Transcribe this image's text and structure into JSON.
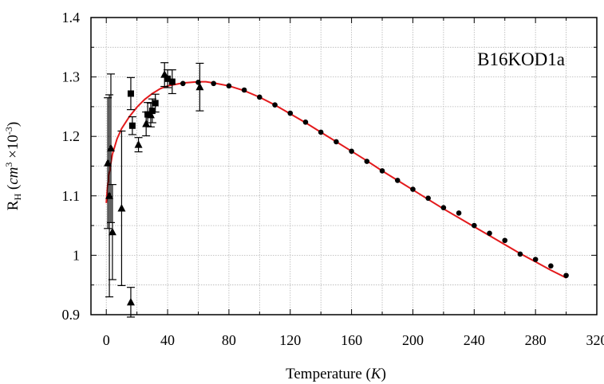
{
  "chart_data": {
    "type": "scatter",
    "annotation": "B16KOD1a",
    "xlabel": {
      "text": "Temperature (",
      "italic": "K",
      "suffix": ")"
    },
    "ylabel": {
      "main": "R",
      "sub": "H",
      "unit_open": " (",
      "unit_italic": "cm",
      "unit_sup": "3",
      "unit_mid": " ×10",
      "unit_sup2": "-3",
      "unit_close": ")"
    },
    "xlim": [
      -10,
      320
    ],
    "ylim": [
      0.9,
      1.4
    ],
    "xticks": [
      0,
      40,
      80,
      120,
      160,
      200,
      240,
      280,
      320
    ],
    "yticks": [
      0.9,
      1.0,
      1.1,
      1.2,
      1.3,
      1.4
    ],
    "ytick_labels": [
      "0.9",
      "1",
      "1.1",
      "1.2",
      "1.3",
      "1.4"
    ],
    "grid": true,
    "colors": {
      "fit": "#e31a1c",
      "markers": "#000000",
      "grid": "#b4b4b4"
    },
    "series": [
      {
        "marker": "circle",
        "points": [
          {
            "x": 50,
            "y": 1.289
          },
          {
            "x": 60,
            "y": 1.291
          },
          {
            "x": 70,
            "y": 1.289
          },
          {
            "x": 80,
            "y": 1.285
          },
          {
            "x": 90,
            "y": 1.278
          },
          {
            "x": 100,
            "y": 1.266
          },
          {
            "x": 110,
            "y": 1.253
          },
          {
            "x": 120,
            "y": 1.239
          },
          {
            "x": 130,
            "y": 1.224
          },
          {
            "x": 140,
            "y": 1.207
          },
          {
            "x": 150,
            "y": 1.191
          },
          {
            "x": 160,
            "y": 1.175
          },
          {
            "x": 170,
            "y": 1.158
          },
          {
            "x": 180,
            "y": 1.142
          },
          {
            "x": 190,
            "y": 1.126
          },
          {
            "x": 200,
            "y": 1.111
          },
          {
            "x": 210,
            "y": 1.096
          },
          {
            "x": 220,
            "y": 1.08
          },
          {
            "x": 230,
            "y": 1.071
          },
          {
            "x": 240,
            "y": 1.05
          },
          {
            "x": 250,
            "y": 1.037
          },
          {
            "x": 260,
            "y": 1.025
          },
          {
            "x": 270,
            "y": 1.002
          },
          {
            "x": 280,
            "y": 0.993
          },
          {
            "x": 290,
            "y": 0.982
          },
          {
            "x": 300,
            "y": 0.966
          }
        ]
      },
      {
        "marker": "square",
        "points": [
          {
            "x": 16,
            "y": 1.272,
            "err": 0.027
          },
          {
            "x": 17,
            "y": 1.218,
            "err": 0.015
          },
          {
            "x": 27,
            "y": 1.237,
            "err": 0.02
          },
          {
            "x": 30,
            "y": 1.243,
            "err": 0.02
          },
          {
            "x": 32,
            "y": 1.256,
            "err": 0.015
          },
          {
            "x": 40,
            "y": 1.297,
            "err": 0.015
          },
          {
            "x": 43,
            "y": 1.292,
            "err": 0.02
          }
        ]
      },
      {
        "marker": "triangle",
        "points": [
          {
            "x": 1,
            "y": 1.155,
            "err": 0.11
          },
          {
            "x": 2,
            "y": 1.1,
            "err": 0.17
          },
          {
            "x": 3,
            "y": 1.18,
            "err": 0.125
          },
          {
            "x": 4,
            "y": 1.039,
            "err": 0.08
          },
          {
            "x": 10,
            "y": 1.079,
            "err": 0.13
          },
          {
            "x": 16,
            "y": 0.921,
            "err": 0.025
          },
          {
            "x": 21,
            "y": 1.186,
            "err": 0.012
          },
          {
            "x": 26,
            "y": 1.221,
            "err": 0.02
          },
          {
            "x": 29,
            "y": 1.236,
            "err": 0.02
          },
          {
            "x": 38,
            "y": 1.304,
            "err": 0.02
          },
          {
            "x": 61,
            "y": 1.283,
            "err": 0.04
          }
        ]
      }
    ],
    "fit_curve": [
      {
        "x": 0,
        "y": 1.088
      },
      {
        "x": 1,
        "y": 1.12
      },
      {
        "x": 2,
        "y": 1.14
      },
      {
        "x": 4,
        "y": 1.17
      },
      {
        "x": 7,
        "y": 1.196
      },
      {
        "x": 10,
        "y": 1.213
      },
      {
        "x": 15,
        "y": 1.233
      },
      {
        "x": 20,
        "y": 1.249
      },
      {
        "x": 25,
        "y": 1.262
      },
      {
        "x": 30,
        "y": 1.272
      },
      {
        "x": 35,
        "y": 1.28
      },
      {
        "x": 40,
        "y": 1.285
      },
      {
        "x": 50,
        "y": 1.29
      },
      {
        "x": 60,
        "y": 1.292
      },
      {
        "x": 65,
        "y": 1.292
      },
      {
        "x": 70,
        "y": 1.29
      },
      {
        "x": 80,
        "y": 1.285
      },
      {
        "x": 90,
        "y": 1.277
      },
      {
        "x": 100,
        "y": 1.266
      },
      {
        "x": 110,
        "y": 1.253
      },
      {
        "x": 120,
        "y": 1.238
      },
      {
        "x": 130,
        "y": 1.223
      },
      {
        "x": 140,
        "y": 1.207
      },
      {
        "x": 150,
        "y": 1.191
      },
      {
        "x": 160,
        "y": 1.175
      },
      {
        "x": 170,
        "y": 1.159
      },
      {
        "x": 180,
        "y": 1.142
      },
      {
        "x": 190,
        "y": 1.126
      },
      {
        "x": 200,
        "y": 1.11
      },
      {
        "x": 210,
        "y": 1.094
      },
      {
        "x": 220,
        "y": 1.078
      },
      {
        "x": 230,
        "y": 1.063
      },
      {
        "x": 240,
        "y": 1.048
      },
      {
        "x": 250,
        "y": 1.033
      },
      {
        "x": 260,
        "y": 1.018
      },
      {
        "x": 270,
        "y": 1.003
      },
      {
        "x": 280,
        "y": 0.989
      },
      {
        "x": 290,
        "y": 0.975
      },
      {
        "x": 300,
        "y": 0.962
      }
    ]
  }
}
